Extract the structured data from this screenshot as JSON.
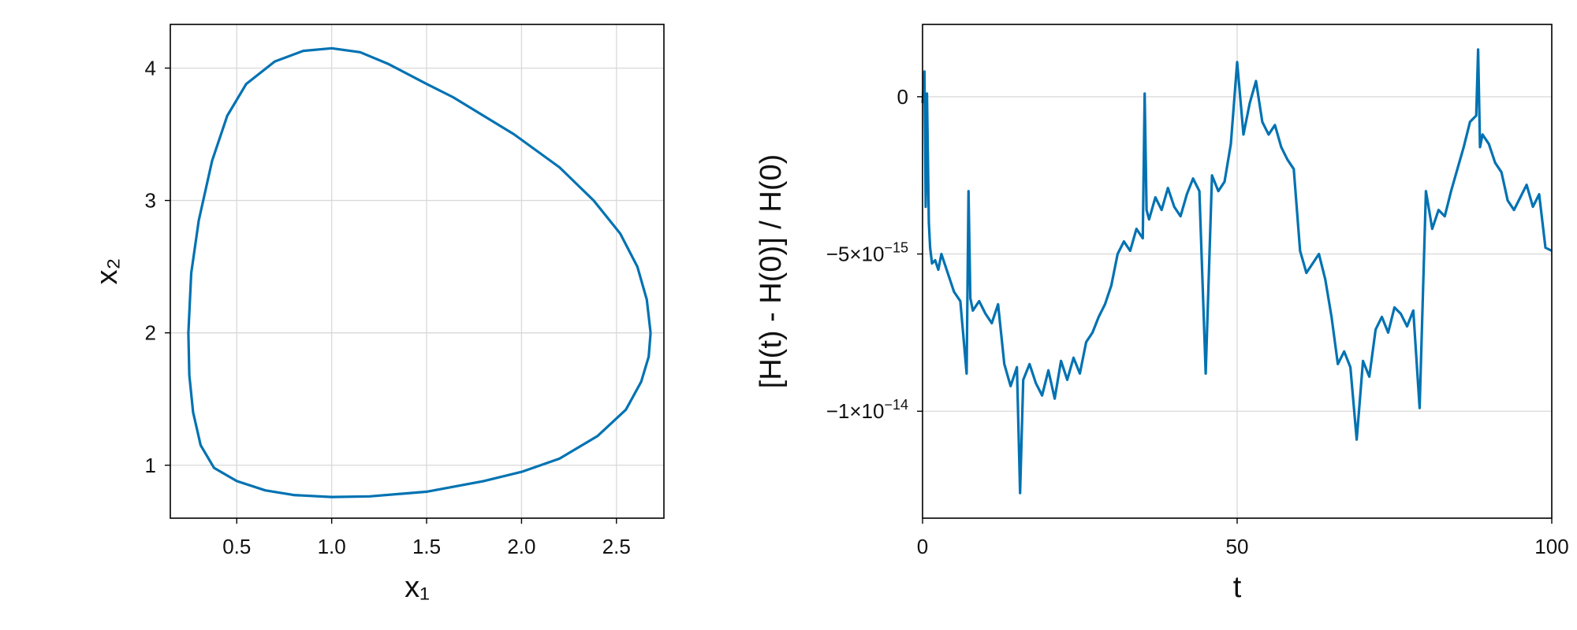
{
  "colors": {
    "series": "#0072b2"
  },
  "chart_data": [
    {
      "type": "line",
      "xlabel": "x₁",
      "ylabel": "x₂",
      "xlim": [
        0.15,
        2.75
      ],
      "ylim": [
        0.6,
        4.33
      ],
      "grid": true,
      "xticks": [
        {
          "value": 0.5,
          "label": "0.5"
        },
        {
          "value": 1.0,
          "label": "1.0"
        },
        {
          "value": 1.5,
          "label": "1.5"
        },
        {
          "value": 2.0,
          "label": "2.0"
        },
        {
          "value": 2.5,
          "label": "2.5"
        }
      ],
      "yticks": [
        {
          "value": 1,
          "label": "1"
        },
        {
          "value": 2,
          "label": "2"
        },
        {
          "value": 3,
          "label": "3"
        },
        {
          "value": 4,
          "label": "4"
        }
      ],
      "series": [
        {
          "points": [
            [
              2.68,
              2.0
            ],
            [
              2.66,
              2.25
            ],
            [
              2.61,
              2.5
            ],
            [
              2.52,
              2.75
            ],
            [
              2.38,
              3.0
            ],
            [
              2.2,
              3.25
            ],
            [
              1.96,
              3.5
            ],
            [
              1.64,
              3.78
            ],
            [
              1.5,
              3.88
            ],
            [
              1.3,
              4.03
            ],
            [
              1.15,
              4.12
            ],
            [
              1.0,
              4.15
            ],
            [
              0.85,
              4.13
            ],
            [
              0.7,
              4.05
            ],
            [
              0.55,
              3.88
            ],
            [
              0.45,
              3.64
            ],
            [
              0.37,
              3.3
            ],
            [
              0.3,
              2.85
            ],
            [
              0.26,
              2.45
            ],
            [
              0.245,
              2.0
            ],
            [
              0.25,
              1.68
            ],
            [
              0.27,
              1.4
            ],
            [
              0.31,
              1.15
            ],
            [
              0.38,
              0.98
            ],
            [
              0.5,
              0.88
            ],
            [
              0.65,
              0.81
            ],
            [
              0.8,
              0.775
            ],
            [
              1.0,
              0.76
            ],
            [
              1.2,
              0.765
            ],
            [
              1.5,
              0.8
            ],
            [
              1.8,
              0.88
            ],
            [
              2.0,
              0.95
            ],
            [
              2.2,
              1.05
            ],
            [
              2.4,
              1.22
            ],
            [
              2.55,
              1.42
            ],
            [
              2.63,
              1.63
            ],
            [
              2.67,
              1.82
            ],
            [
              2.68,
              2.0
            ]
          ]
        }
      ]
    },
    {
      "type": "line",
      "xlabel": "t",
      "ylabel": "[H(t) - H(0)] / H(0)",
      "xlim": [
        0,
        100
      ],
      "ylim": [
        -1.34e-14,
        2.3e-15
      ],
      "grid": true,
      "xticks": [
        {
          "value": 0,
          "label": "0"
        },
        {
          "value": 50,
          "label": "50"
        },
        {
          "value": 100,
          "label": "100"
        }
      ],
      "yticks": [
        {
          "value": 0,
          "mantissa": "0",
          "exponent": ""
        },
        {
          "value": -5e-15,
          "mantissa": "−5×10",
          "exponent": "−15"
        },
        {
          "value": -1e-14,
          "mantissa": "−1×10",
          "exponent": "−14"
        }
      ],
      "series": [
        {
          "x": [
            0,
            0.3,
            0.5,
            0.7,
            1,
            1.2,
            1.5,
            2,
            2.5,
            3,
            4,
            5,
            6,
            7,
            7.3,
            7.6,
            8,
            9,
            10,
            11,
            12,
            13,
            14,
            15,
            15.5,
            16,
            17,
            18,
            19,
            20,
            21,
            22,
            23,
            24,
            25,
            26,
            27,
            28,
            29,
            30,
            31,
            32,
            33,
            34,
            35,
            35.3,
            35.6,
            36,
            37,
            38,
            39,
            40,
            41,
            42,
            43,
            44,
            45,
            46,
            47,
            48,
            49,
            50,
            51,
            52,
            53,
            54,
            55,
            56,
            57,
            58,
            59,
            60,
            61,
            62,
            63,
            64,
            65,
            66,
            67,
            68,
            69,
            70,
            71,
            72,
            73,
            74,
            75,
            76,
            77,
            78,
            79,
            80,
            81,
            82,
            83,
            84,
            85,
            86,
            87,
            88,
            88.3,
            88.6,
            89,
            90,
            91,
            92,
            93,
            94,
            95,
            96,
            97,
            98,
            99,
            100
          ],
          "y": [
            -2e-16,
            8e-16,
            -3.5e-15,
            1e-16,
            -4e-15,
            -4.8e-15,
            -5.3e-15,
            -5.2e-15,
            -5.5e-15,
            -5e-15,
            -5.6e-15,
            -6.2e-15,
            -6.5e-15,
            -8.8e-15,
            -3e-15,
            -6.4e-15,
            -6.8e-15,
            -6.5e-15,
            -6.9e-15,
            -7.2e-15,
            -6.6e-15,
            -8.5e-15,
            -9.2e-15,
            -8.6e-15,
            -1.26e-14,
            -9e-15,
            -8.5e-15,
            -9.1e-15,
            -9.5e-15,
            -8.7e-15,
            -9.6e-15,
            -8.4e-15,
            -9e-15,
            -8.3e-15,
            -8.8e-15,
            -7.8e-15,
            -7.5e-15,
            -7e-15,
            -6.6e-15,
            -6e-15,
            -5e-15,
            -4.6e-15,
            -4.9e-15,
            -4.2e-15,
            -4.5e-15,
            1e-16,
            -3.6e-15,
            -3.9e-15,
            -3.2e-15,
            -3.6e-15,
            -2.9e-15,
            -3.5e-15,
            -3.8e-15,
            -3.1e-15,
            -2.6e-15,
            -3e-15,
            -8.8e-15,
            -2.5e-15,
            -3e-15,
            -2.7e-15,
            -1.5e-15,
            1.1e-15,
            -1.2e-15,
            -2e-16,
            5e-16,
            -8e-16,
            -1.2e-15,
            -9e-16,
            -1.6e-15,
            -2e-15,
            -2.3e-15,
            -4.9e-15,
            -5.6e-15,
            -5.3e-15,
            -5e-15,
            -5.8e-15,
            -7e-15,
            -8.5e-15,
            -8.1e-15,
            -8.6e-15,
            -1.09e-14,
            -8.4e-15,
            -8.9e-15,
            -7.4e-15,
            -7e-15,
            -7.5e-15,
            -6.7e-15,
            -6.9e-15,
            -7.3e-15,
            -6.8e-15,
            -9.9e-15,
            -3e-15,
            -4.2e-15,
            -3.6e-15,
            -3.8e-15,
            -3e-15,
            -2.3e-15,
            -1.6e-15,
            -8e-16,
            -6e-16,
            1.5e-15,
            -1.6e-15,
            -1.2e-15,
            -1.5e-15,
            -2.1e-15,
            -2.4e-15,
            -3.3e-15,
            -3.6e-15,
            -3.2e-15,
            -2.8e-15,
            -3.5e-15,
            -3.1e-15,
            -4.8e-15,
            -4.9e-15
          ]
        }
      ]
    }
  ]
}
